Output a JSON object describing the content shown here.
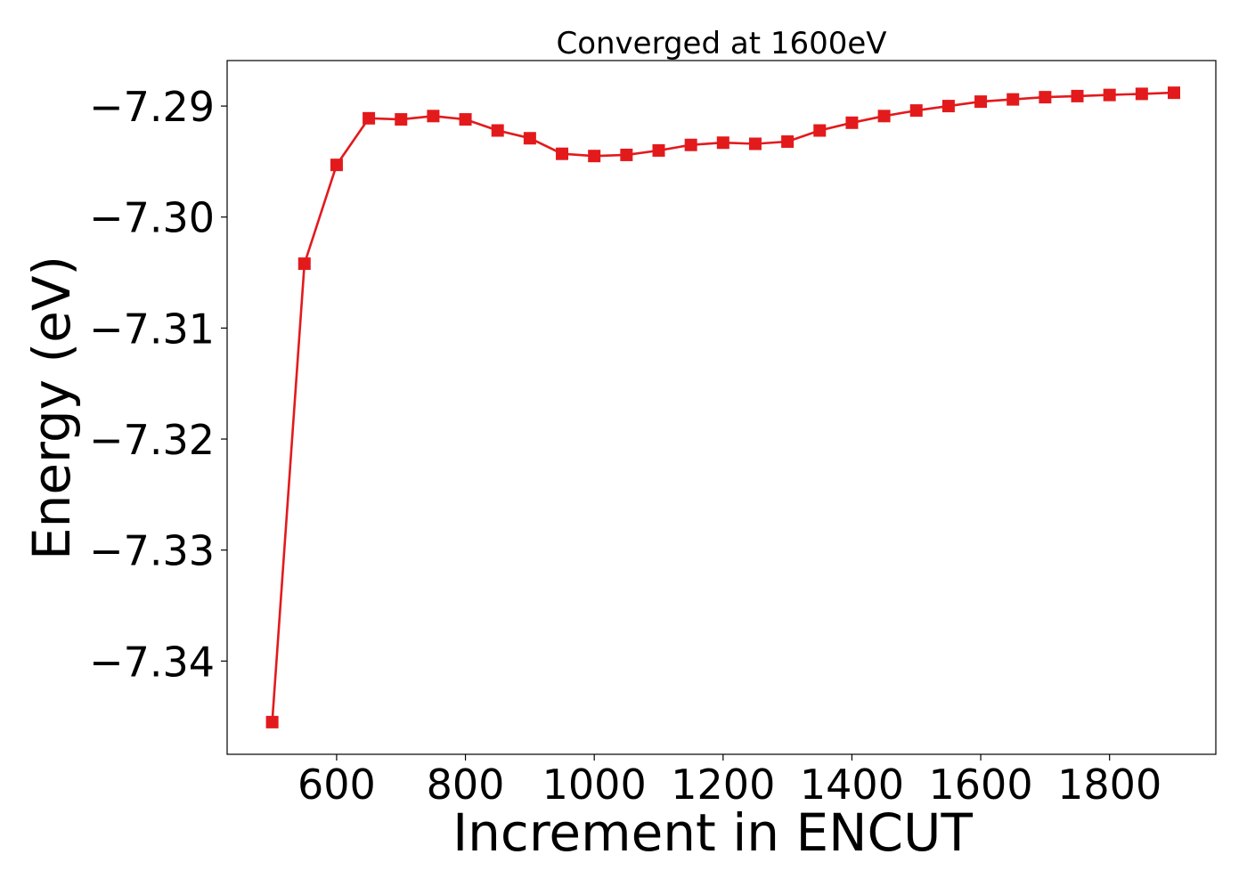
{
  "chart_data": {
    "type": "line",
    "title": "Converged at 1600eV",
    "xlabel": "Increment in ENCUT",
    "ylabel": "Energy (eV)",
    "xlim": [
      430,
      1965
    ],
    "ylim": [
      -7.3484,
      -7.2859
    ],
    "xticks": [
      600,
      800,
      1000,
      1200,
      1400,
      1600,
      1800
    ],
    "xtick_labels": [
      "600",
      "800",
      "1000",
      "1200",
      "1400",
      "1600",
      "1800"
    ],
    "yticks": [
      -7.29,
      -7.3,
      -7.31,
      -7.32,
      -7.33,
      -7.34
    ],
    "ytick_labels": [
      "−7.29",
      "−7.30",
      "−7.31",
      "−7.32",
      "−7.33",
      "−7.34"
    ],
    "grid": false,
    "series": [
      {
        "color": "#e31a1c",
        "marker": "square",
        "x": [
          500,
          550,
          600,
          650,
          700,
          750,
          800,
          850,
          900,
          950,
          1000,
          1050,
          1100,
          1150,
          1200,
          1250,
          1300,
          1350,
          1400,
          1450,
          1500,
          1550,
          1600,
          1650,
          1700,
          1750,
          1800,
          1850,
          1900
        ],
        "y": [
          -7.3455,
          -7.3042,
          -7.2953,
          -7.2911,
          -7.2912,
          -7.2909,
          -7.2912,
          -7.2922,
          -7.2929,
          -7.2943,
          -7.2945,
          -7.2944,
          -7.294,
          -7.2935,
          -7.2933,
          -7.2934,
          -7.2932,
          -7.2922,
          -7.2915,
          -7.2909,
          -7.2904,
          -7.29,
          -7.2896,
          -7.2894,
          -7.2892,
          -7.2891,
          -7.289,
          -7.2889,
          -7.2888
        ]
      }
    ]
  }
}
